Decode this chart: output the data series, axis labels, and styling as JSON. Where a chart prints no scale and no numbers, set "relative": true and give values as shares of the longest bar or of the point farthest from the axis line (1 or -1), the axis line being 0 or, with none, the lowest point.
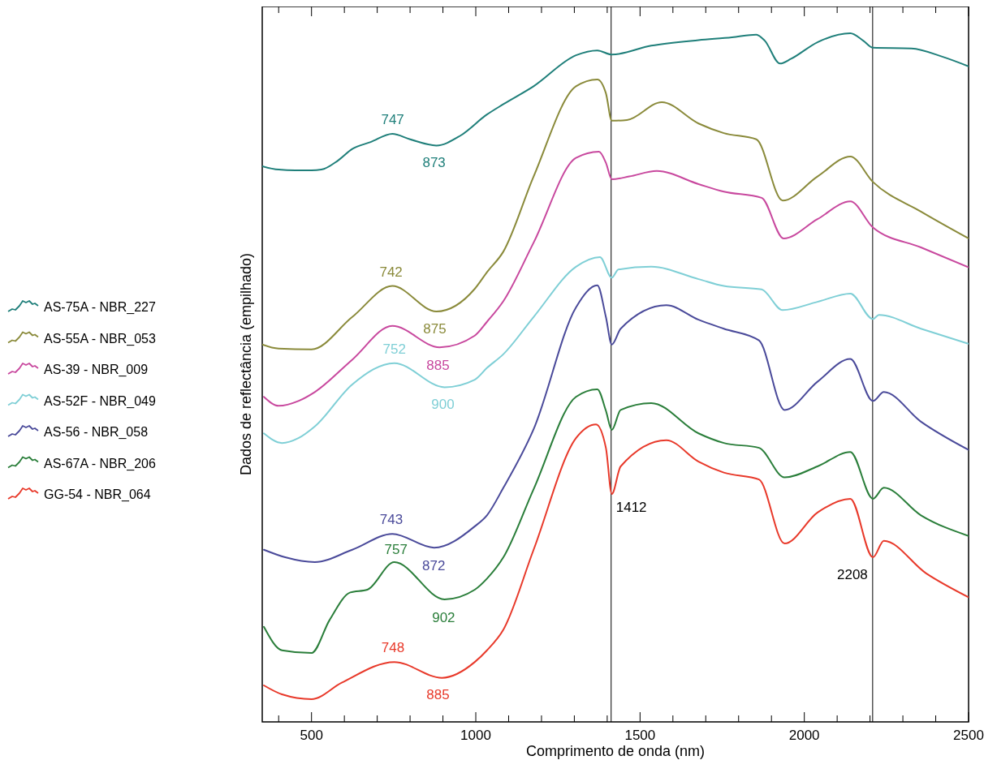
{
  "chart_data": {
    "type": "line",
    "relative": true,
    "xlabel": "Comprimento de onda (nm)",
    "ylabel": "Dados de reflectância (empilhado)",
    "legend": "left",
    "line_style": "solid",
    "xlim": [
      350,
      2500
    ],
    "xticks": [
      {
        "value": 400,
        "label": null
      },
      500,
      {
        "value": 600,
        "label": null
      },
      {
        "value": 700,
        "label": null
      },
      {
        "value": 800,
        "label": null
      },
      {
        "value": 900,
        "label": null
      },
      1000,
      {
        "value": 1100,
        "label": null
      },
      {
        "value": 1200,
        "label": null
      },
      {
        "value": 1300,
        "label": null
      },
      {
        "value": 1400,
        "label": null
      },
      1500,
      {
        "value": 1600,
        "label": null
      },
      {
        "value": 1700,
        "label": null
      },
      {
        "value": 1800,
        "label": null
      },
      {
        "value": 1900,
        "label": null
      },
      2000,
      {
        "value": 2100,
        "label": null
      },
      {
        "value": 2200,
        "label": null
      },
      {
        "value": 2300,
        "label": null
      },
      {
        "value": 2400,
        "label": null
      },
      2500
    ],
    "ref_lines": [
      {
        "axis": "x",
        "value": 1412,
        "color": "#000000",
        "label": "1412"
      },
      {
        "axis": "x",
        "value": 2208,
        "color": "#000000",
        "label": "2208"
      }
    ],
    "series": [
      {
        "name": "AS-75A - NBR_227",
        "color": "#1f7f7a",
        "x": [
          350,
          400,
          450,
          500,
          530,
          580,
          624,
          680,
          746,
          800,
          880,
          952,
          1034,
          1084,
          1176,
          1305,
          1370,
          1414,
          1534,
          1678,
          1780,
          1854,
          1880,
          1926,
          1960,
          2040,
          2140,
          2180,
          2209,
          2326,
          2420,
          2500
        ],
        "values": [
          0.807,
          0.802,
          0.801,
          0.801,
          0.802,
          0.815,
          0.832,
          0.842,
          0.854,
          0.846,
          0.837,
          0.851,
          0.882,
          0.897,
          0.923,
          0.968,
          0.975,
          0.969,
          0.982,
          0.99,
          0.994,
          0.998,
          0.989,
          0.956,
          0.963,
          0.987,
          1.0,
          0.989,
          0.979,
          0.978,
          0.966,
          0.952
        ]
      },
      {
        "name": "AS-55A - NBR_053",
        "color": "#8a8a3a",
        "x": [
          350,
          400,
          500,
          624,
          746,
          880,
          997,
          1034,
          1084,
          1176,
          1305,
          1370,
          1396,
          1414,
          1460,
          1566,
          1678,
          1755,
          1854,
          1934,
          2040,
          2140,
          2209,
          2355,
          2500
        ],
        "values": [
          0.548,
          0.542,
          0.541,
          0.588,
          0.633,
          0.596,
          0.629,
          0.653,
          0.683,
          0.792,
          0.923,
          0.933,
          0.913,
          0.873,
          0.874,
          0.9,
          0.869,
          0.855,
          0.846,
          0.757,
          0.792,
          0.821,
          0.784,
          0.741,
          0.702
        ]
      },
      {
        "name": "AS-39 - NBR_009",
        "color": "#c8489e",
        "x": [
          355,
          400,
          460,
          510,
          624,
          746,
          890,
          997,
          1034,
          1084,
          1176,
          1305,
          1375,
          1396,
          1414,
          1467,
          1551,
          1678,
          1755,
          1870,
          1937,
          2040,
          2140,
          2209,
          2355,
          2500
        ],
        "values": [
          0.472,
          0.459,
          0.466,
          0.479,
          0.526,
          0.575,
          0.544,
          0.561,
          0.581,
          0.611,
          0.696,
          0.819,
          0.828,
          0.812,
          0.788,
          0.792,
          0.8,
          0.781,
          0.77,
          0.761,
          0.702,
          0.73,
          0.756,
          0.718,
          0.689,
          0.66
        ]
      },
      {
        "name": "AS-52F - NBR_049",
        "color": "#7fcfd6",
        "x": [
          355,
          410,
          460,
          510,
          624,
          752,
          905,
          997,
          1034,
          1084,
          1176,
          1305,
          1378,
          1414,
          1434,
          1534,
          1678,
          1755,
          1870,
          1934,
          2040,
          2140,
          2209,
          2227,
          2355,
          2500
        ],
        "values": [
          0.419,
          0.405,
          0.412,
          0.429,
          0.49,
          0.521,
          0.486,
          0.497,
          0.514,
          0.534,
          0.588,
          0.661,
          0.675,
          0.645,
          0.657,
          0.661,
          0.643,
          0.633,
          0.628,
          0.598,
          0.61,
          0.622,
          0.585,
          0.591,
          0.571,
          0.549
        ]
      },
      {
        "name": "AS-56 - NBR_058",
        "color": "#4a4a9a",
        "x": [
          355,
          420,
          510,
          624,
          746,
          873,
          997,
          1034,
          1084,
          1176,
          1305,
          1370,
          1396,
          1414,
          1441,
          1580,
          1678,
          1755,
          1862,
          1940,
          2040,
          2140,
          2209,
          2242,
          2355,
          2500
        ],
        "values": [
          0.25,
          0.239,
          0.232,
          0.25,
          0.273,
          0.253,
          0.284,
          0.3,
          0.34,
          0.425,
          0.602,
          0.634,
          0.588,
          0.548,
          0.571,
          0.605,
          0.584,
          0.571,
          0.554,
          0.453,
          0.494,
          0.527,
          0.466,
          0.479,
          0.436,
          0.395
        ]
      },
      {
        "name": "AS-67A - NBR_206",
        "color": "#2a7e3a",
        "x": [
          355,
          410,
          500,
          555,
          618,
          670,
          752,
          905,
          997,
          1034,
          1084,
          1176,
          1305,
          1370,
          1396,
          1414,
          1441,
          1534,
          1678,
          1755,
          1862,
          1940,
          2040,
          2140,
          2209,
          2242,
          2355,
          2500
        ],
        "values": [
          0.138,
          0.104,
          0.1,
          0.148,
          0.188,
          0.192,
          0.232,
          0.178,
          0.192,
          0.208,
          0.239,
          0.338,
          0.472,
          0.483,
          0.452,
          0.424,
          0.453,
          0.463,
          0.419,
          0.405,
          0.398,
          0.355,
          0.371,
          0.392,
          0.324,
          0.34,
          0.3,
          0.27
        ]
      },
      {
        "name": "GG-54 - NBR_064",
        "color": "#e8392a",
        "x": [
          355,
          410,
          500,
          592,
          752,
          897,
          997,
          1034,
          1084,
          1176,
          1305,
          1366,
          1396,
          1414,
          1441,
          1580,
          1678,
          1755,
          1862,
          1940,
          2040,
          2140,
          2209,
          2242,
          2370,
          2500
        ],
        "values": [
          0.053,
          0.04,
          0.033,
          0.057,
          0.087,
          0.064,
          0.087,
          0.104,
          0.134,
          0.25,
          0.412,
          0.432,
          0.398,
          0.331,
          0.371,
          0.409,
          0.378,
          0.362,
          0.352,
          0.259,
          0.304,
          0.324,
          0.239,
          0.263,
          0.216,
          0.181
        ]
      }
    ],
    "annotations": [
      {
        "text": "747",
        "x": 747,
        "y": 0.854
      },
      {
        "text": "873",
        "x": 873,
        "y": 0.838
      },
      {
        "text": "742",
        "x": 742,
        "y": 0.632
      },
      {
        "text": "875",
        "x": 875,
        "y": 0.597
      },
      {
        "text": "752",
        "x": 752,
        "y": 0.521
      },
      {
        "text": "885",
        "x": 885,
        "y": 0.544
      },
      {
        "text": "900",
        "x": 900,
        "y": 0.487
      },
      {
        "text": "743",
        "x": 743,
        "y": 0.273
      },
      {
        "text": "872",
        "x": 872,
        "y": 0.253
      },
      {
        "text": "757",
        "x": 757,
        "y": 0.23
      },
      {
        "text": "902",
        "x": 902,
        "y": 0.178
      },
      {
        "text": "748",
        "x": 748,
        "y": 0.087
      },
      {
        "text": "885",
        "x": 885,
        "y": 0.066
      }
    ]
  }
}
